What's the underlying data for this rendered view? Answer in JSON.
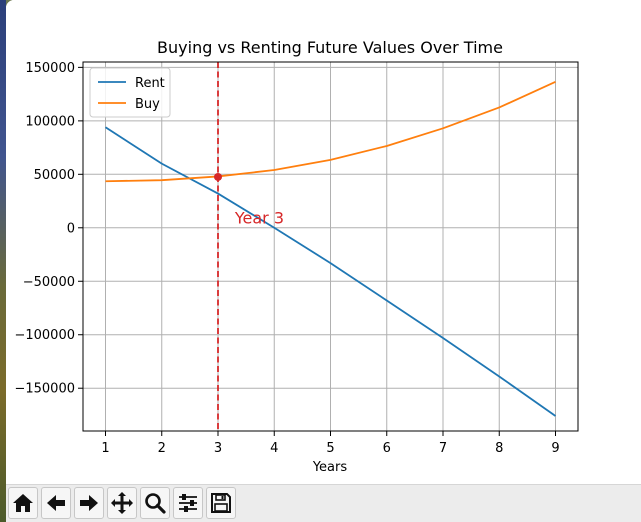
{
  "chart_data": {
    "type": "line",
    "title": "Buying vs Renting Future Values Over Time",
    "xlabel": "Years",
    "ylabel": "",
    "x": [
      1,
      2,
      3,
      4,
      5,
      6,
      7,
      8,
      9
    ],
    "xlim": [
      0.6,
      9.4
    ],
    "ylim": [
      -190000,
      155000
    ],
    "xticks": [
      1,
      2,
      3,
      4,
      5,
      6,
      7,
      8,
      9
    ],
    "yticks": [
      150000,
      100000,
      50000,
      0,
      -50000,
      -100000,
      -150000
    ],
    "ytick_labels": [
      "150000",
      "100000",
      "50000",
      "0",
      "−50000",
      "−100000",
      "−150000"
    ],
    "grid": true,
    "legend_position": "upper-left",
    "series": [
      {
        "name": "Rent",
        "color": "#1f77b4",
        "values": [
          94000,
          60000,
          32000,
          0,
          -33000,
          -68000,
          -103000,
          -139000,
          -176000
        ]
      },
      {
        "name": "Buy",
        "color": "#ff7f0e",
        "values": [
          43500,
          44500,
          48000,
          54000,
          63500,
          76500,
          93000,
          112500,
          136500
        ]
      }
    ],
    "annotations": {
      "vline_x": 3,
      "vline_color": "#d62728",
      "marker": {
        "x": 3,
        "y": 47500,
        "color": "#d62728"
      },
      "label": {
        "text": "Year 3",
        "x": 3.3,
        "y": 4000,
        "color": "#d62728"
      }
    }
  },
  "toolbar": {
    "buttons": [
      {
        "name": "home-button",
        "icon": "home-icon"
      },
      {
        "name": "back-button",
        "icon": "arrow-left-icon"
      },
      {
        "name": "forward-button",
        "icon": "arrow-right-icon"
      },
      {
        "name": "pan-button",
        "icon": "move-icon"
      },
      {
        "name": "zoom-button",
        "icon": "magnifier-icon"
      },
      {
        "name": "configure-subplots-button",
        "icon": "sliders-icon"
      },
      {
        "name": "save-button",
        "icon": "floppy-disk-icon"
      }
    ]
  }
}
